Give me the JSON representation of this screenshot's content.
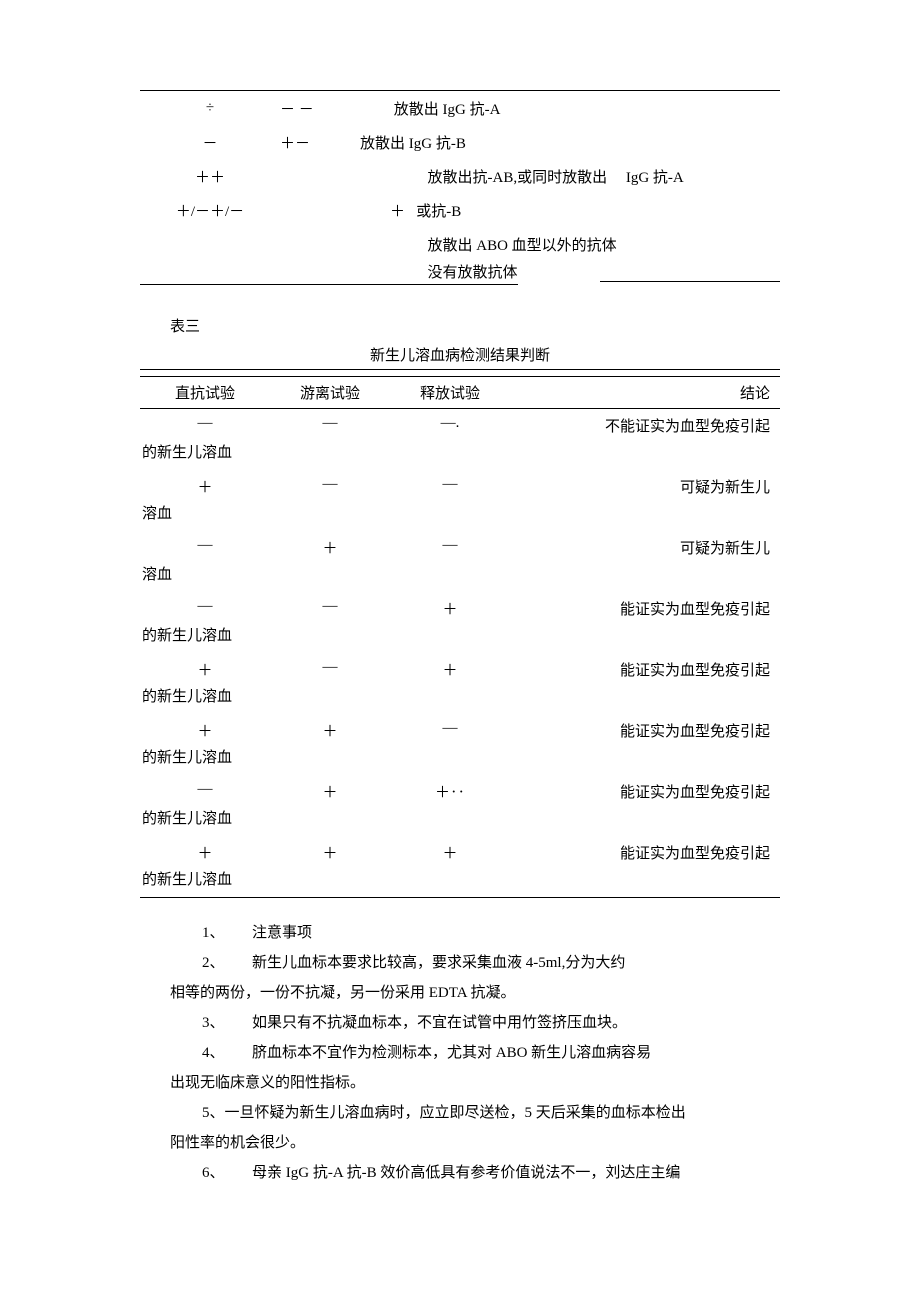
{
  "table1": {
    "rows": [
      {
        "c1": "÷",
        "c2": "－   －",
        "rest": "         放散出 IgG 抗-A"
      },
      {
        "c1": "－",
        "c2": "＋－",
        "rest": "放散出 IgG 抗-B"
      },
      {
        "c1": "＋＋",
        "c2": "",
        "rest": "                  放散出抗-AB,或同时放散出     IgG 抗-A"
      },
      {
        "c1": "＋/－＋/－",
        "c2": "",
        "rest": "        ＋   或抗-B"
      },
      {
        "c1": "",
        "c2": "",
        "rest": "                  放散出 ABO 血型以外的抗体"
      },
      {
        "c1": "",
        "c2": "",
        "rest_under": "                  没有放散抗体"
      }
    ]
  },
  "table3": {
    "label": "表三",
    "caption": "新生儿溶血病检测结果判断",
    "headers": [
      "直抗试验",
      "游离试验",
      "释放试验",
      "结论"
    ],
    "rows": [
      {
        "c1": "—",
        "c2": "—",
        "c3": "—.",
        "c4": "不能证实为血型免疫引起",
        "cont": "的新生儿溶血"
      },
      {
        "c1": "＋",
        "c2": "—",
        "c3": "—",
        "c4": "可疑为新生儿",
        "cont": "溶血"
      },
      {
        "c1": "—",
        "c2": "＋",
        "c3": "—",
        "c4": "可疑为新生儿",
        "cont": "溶血"
      },
      {
        "c1": "—",
        "c2": "—",
        "c3": "＋",
        "c4": "能证实为血型免疫引起",
        "cont": "的新生儿溶血"
      },
      {
        "c1": "＋",
        "c2": "—",
        "c3": "＋",
        "c4": "能证实为血型免疫引起",
        "cont": "的新生儿溶血"
      },
      {
        "c1": "＋",
        "c2": "＋",
        "c3": "—",
        "c4": "能证实为血型免疫引起",
        "cont": "的新生儿溶血"
      },
      {
        "c1": "—",
        "c2": "＋",
        "c3": "＋‥",
        "c4": "能证实为血型免疫引起",
        "cont": "的新生儿溶血"
      },
      {
        "c1": "＋",
        "c2": "＋",
        "c3": "＋",
        "c4": "能证实为血型免疫引起",
        "cont": "的新生儿溶血"
      }
    ]
  },
  "notes": [
    {
      "num": "1、",
      "text": "注意事项"
    },
    {
      "num": "2、",
      "text": "新生儿血标本要求比较高，要求采集血液 4-5ml,分为大约"
    },
    {
      "cont": "相等的两份，一份不抗凝，另一份采用 EDTA 抗凝。"
    },
    {
      "num": "3、",
      "text": "如果只有不抗凝血标本，不宜在试管中用竹签挤压血块。"
    },
    {
      "num": "4、",
      "text": "脐血标本不宜作为检测标本，尤其对 ABO 新生儿溶血病容易"
    },
    {
      "cont": "出现无临床意义的阳性指标。"
    },
    {
      "num_inline": "5、",
      "text_inline": "一旦怀疑为新生儿溶血病时，应立即尽送检，5 天后采集的血标本检出"
    },
    {
      "cont": "阳性率的机会很少。"
    },
    {
      "num": "6、",
      "text": "母亲 IgG 抗-A 抗-B 效价高低具有参考价值说法不一，刘达庄主编"
    }
  ]
}
